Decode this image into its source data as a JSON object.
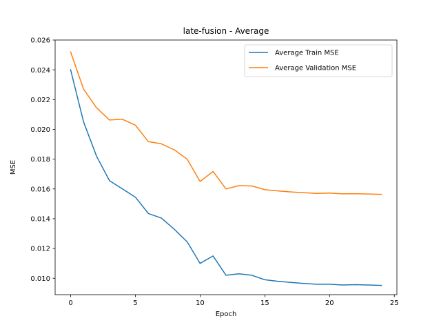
{
  "chart_data": {
    "type": "line",
    "title": "late-fusion - Average",
    "xlabel": "Epoch",
    "ylabel": "MSE",
    "xlim": [
      -1.2,
      25.2
    ],
    "ylim": [
      0.0089,
      0.026
    ],
    "xticks": [
      0,
      5,
      10,
      15,
      20,
      25
    ],
    "yticks": [
      0.01,
      0.012,
      0.014,
      0.016,
      0.018,
      0.02,
      0.022,
      0.024,
      0.026
    ],
    "xtick_labels": [
      "0",
      "5",
      "10",
      "15",
      "20",
      "25"
    ],
    "ytick_labels": [
      "0.010",
      "0.012",
      "0.014",
      "0.016",
      "0.018",
      "0.020",
      "0.022",
      "0.024",
      "0.026"
    ],
    "grid": false,
    "legend_position": "top-right",
    "x": [
      0,
      1,
      2,
      3,
      4,
      5,
      6,
      7,
      8,
      9,
      10,
      11,
      12,
      13,
      14,
      15,
      16,
      17,
      18,
      19,
      20,
      21,
      22,
      23,
      24
    ],
    "series": [
      {
        "name": "Average Train MSE",
        "color": "#1f77b4",
        "values": [
          0.024,
          0.0205,
          0.0182,
          0.01655,
          0.016,
          0.01545,
          0.01435,
          0.01405,
          0.0133,
          0.01245,
          0.011,
          0.0115,
          0.0102,
          0.0103,
          0.0102,
          0.0099,
          0.0098,
          0.00972,
          0.00965,
          0.0096,
          0.0096,
          0.00955,
          0.00957,
          0.00955,
          0.00952
        ]
      },
      {
        "name": "Average Validation MSE",
        "color": "#ff7f0e",
        "values": [
          0.0252,
          0.0227,
          0.02145,
          0.02063,
          0.02068,
          0.02028,
          0.01918,
          0.01903,
          0.01863,
          0.018,
          0.0165,
          0.01717,
          0.016,
          0.01622,
          0.0162,
          0.01595,
          0.01587,
          0.0158,
          0.01575,
          0.0157,
          0.01572,
          0.01567,
          0.01568,
          0.01566,
          0.01564
        ]
      }
    ]
  }
}
